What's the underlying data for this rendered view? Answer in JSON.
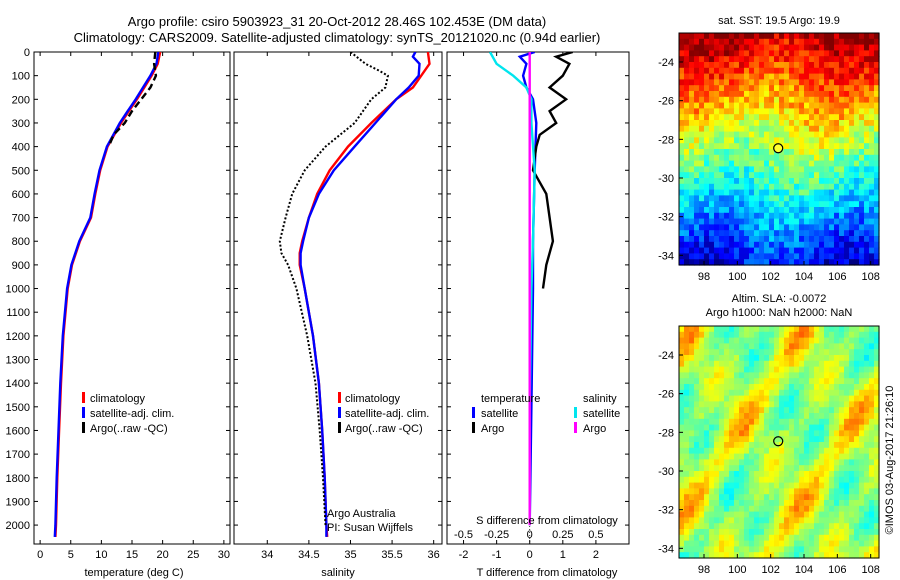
{
  "header": {
    "title_line1": "Argo profile: csiro 5903923_31 20-Oct-2012 28.46S 102.453E (DM data)",
    "title_line2": "Climatology: CARS2009. Satellite-adjusted climatology: synTS_20121020.nc (0.94d earlier)"
  },
  "colors": {
    "climatology": "#ff0000",
    "satellite": "#0000ff",
    "argo": "#000000",
    "satellite_s": "#00e5ee",
    "argo_s": "#ff00ff"
  },
  "chart_data": [
    {
      "id": "temperature",
      "type": "line",
      "xlabel": "temperature (deg C)",
      "ylabel": "",
      "xlim": [
        -1,
        31
      ],
      "ylim": [
        2080,
        0
      ],
      "xticks": [
        0,
        5,
        10,
        15,
        20,
        25,
        30
      ],
      "yticks": [
        0,
        100,
        200,
        300,
        400,
        500,
        600,
        700,
        800,
        900,
        1000,
        1100,
        1200,
        1300,
        1400,
        1500,
        1600,
        1700,
        1800,
        1900,
        2000
      ],
      "legend": [
        "climatology",
        "satellite-adj. clim.",
        "Argo(..raw -QC)"
      ],
      "series": [
        {
          "name": "climatology",
          "style": "solid",
          "color": "#ff0000",
          "depth": [
            0,
            50,
            100,
            150,
            200,
            250,
            300,
            400,
            500,
            600,
            700,
            800,
            900,
            1000,
            1200,
            1400,
            1600,
            1800,
            2000,
            2050
          ],
          "values": [
            19.6,
            19.2,
            18.2,
            17.0,
            15.8,
            14.5,
            13.2,
            11.0,
            9.8,
            9.0,
            8.3,
            6.5,
            5.2,
            4.5,
            3.8,
            3.4,
            3.1,
            2.8,
            2.6,
            2.5
          ]
        },
        {
          "name": "satellite-adj. clim.",
          "style": "solid",
          "color": "#0000ff",
          "depth": [
            0,
            50,
            100,
            150,
            200,
            250,
            300,
            400,
            500,
            600,
            700,
            800,
            900,
            1000,
            1200,
            1400,
            1600,
            1800,
            2000,
            2050
          ],
          "values": [
            19.3,
            19.0,
            18.0,
            16.8,
            15.6,
            14.3,
            13.0,
            10.9,
            9.7,
            8.9,
            8.2,
            6.4,
            5.1,
            4.4,
            3.7,
            3.3,
            3.0,
            2.7,
            2.5,
            2.4
          ]
        },
        {
          "name": "Argo(..raw -QC)",
          "style": "dashed",
          "color": "#000000",
          "depth": [
            0,
            50,
            100,
            150,
            200,
            250,
            300,
            350,
            400
          ],
          "values": [
            18.8,
            18.6,
            18.9,
            18.0,
            16.5,
            15.0,
            13.8,
            12.0,
            11.2
          ]
        }
      ]
    },
    {
      "id": "salinity",
      "type": "line",
      "xlabel": "salinity",
      "xlim": [
        33.6,
        36.1
      ],
      "ylim": [
        2080,
        0
      ],
      "xticks": [
        34,
        34.5,
        35,
        35.5,
        36
      ],
      "legend": [
        "climatology",
        "satellite-adj. clim.",
        "Argo(..raw -QC)"
      ],
      "annotation": [
        "Argo Australia",
        "PI: Susan Wijffels"
      ],
      "series": [
        {
          "name": "climatology",
          "style": "solid",
          "color": "#ff0000",
          "depth": [
            0,
            50,
            100,
            150,
            200,
            300,
            400,
            500,
            600,
            700,
            800,
            850,
            900,
            1000,
            1200,
            1400,
            1600,
            1800,
            2000,
            2050
          ],
          "values": [
            35.93,
            35.95,
            35.85,
            35.75,
            35.55,
            35.25,
            34.97,
            34.75,
            34.6,
            34.5,
            34.42,
            34.39,
            34.39,
            34.45,
            34.55,
            34.62,
            34.66,
            34.69,
            34.71,
            34.72
          ]
        },
        {
          "name": "satellite-adj. clim.",
          "style": "solid",
          "color": "#0000ff",
          "depth": [
            0,
            20,
            50,
            100,
            150,
            200,
            300,
            400,
            500,
            600,
            700,
            800,
            850,
            900,
            1000,
            1200,
            1400,
            1600,
            1800,
            2000,
            2050
          ],
          "values": [
            35.78,
            35.75,
            35.83,
            35.82,
            35.7,
            35.55,
            35.3,
            35.05,
            34.8,
            34.62,
            34.5,
            34.43,
            34.4,
            34.4,
            34.45,
            34.55,
            34.62,
            34.66,
            34.69,
            34.71,
            34.71
          ]
        },
        {
          "name": "Argo(..raw -QC)",
          "style": "dotted",
          "color": "#000000",
          "depth": [
            0,
            50,
            80,
            100,
            150,
            200,
            250,
            300,
            400,
            500,
            600,
            700,
            800,
            850,
            900,
            1000,
            1200,
            1400,
            1600,
            1800,
            2000
          ],
          "values": [
            35.0,
            35.18,
            35.35,
            35.45,
            35.42,
            35.25,
            35.15,
            35.05,
            34.7,
            34.45,
            34.3,
            34.22,
            34.15,
            34.17,
            34.25,
            34.35,
            34.48,
            34.58,
            34.63,
            34.67,
            34.7
          ]
        }
      ]
    },
    {
      "id": "difference",
      "type": "line",
      "xlabel": "T difference from climatology",
      "xlabel_top": "S difference from climatology",
      "xlim": [
        -2.5,
        3
      ],
      "ylim": [
        2080,
        0
      ],
      "xticks": [
        -2,
        -1,
        0,
        1,
        2
      ],
      "xticks_s": [
        "-0.5",
        "-0.25",
        "0",
        "0.25",
        "0.5"
      ],
      "xticks_s_pos": [
        -2,
        -1,
        0,
        1,
        2
      ],
      "legend_headers": [
        "temperature",
        "salinity"
      ],
      "legend": [
        "satellite",
        "Argo",
        "satellite",
        "Argo"
      ],
      "series": [
        {
          "name": "satellite",
          "quantity": "temperature",
          "color": "#0000ff",
          "depth": [
            0,
            20,
            50,
            100,
            150,
            200,
            300,
            500,
            800,
            1000,
            1500,
            2000
          ],
          "values": [
            0.15,
            -0.3,
            -0.1,
            -0.2,
            -0.1,
            0.1,
            0.2,
            0.15,
            0.1,
            0.1,
            0.05,
            0.0
          ]
        },
        {
          "name": "Argo",
          "quantity": "temperature",
          "color": "#000000",
          "depth": [
            0,
            20,
            50,
            100,
            150,
            200,
            250,
            300,
            350,
            400,
            500,
            600,
            700,
            800,
            900,
            1000
          ],
          "values": [
            1.3,
            0.8,
            1.2,
            1.0,
            0.6,
            1.1,
            0.6,
            0.8,
            0.3,
            0.2,
            0.1,
            0.5,
            0.6,
            0.7,
            0.5,
            0.4
          ]
        },
        {
          "name": "satellite",
          "quantity": "salinity",
          "color": "#00e5ee",
          "depth": [
            0,
            50,
            100,
            150,
            200,
            300,
            500,
            800,
            1000,
            1500,
            2000
          ],
          "values": [
            -1.2,
            -1.0,
            -0.5,
            -0.1,
            0.05,
            0.05,
            0.15,
            0.1,
            0.05,
            0.0,
            0.0
          ]
        },
        {
          "name": "Argo",
          "quantity": "salinity",
          "color": "#ff00ff",
          "depth": [
            0,
            2000
          ],
          "values": [
            0,
            0
          ]
        }
      ]
    },
    {
      "id": "sst_map",
      "type": "heatmap",
      "title": "sat. SST: 19.5 Argo: 19.9",
      "xlim": [
        96.5,
        108.5
      ],
      "ylim": [
        -34.5,
        -22.5
      ],
      "xticks": [
        98,
        100,
        102,
        104,
        106,
        108
      ],
      "yticks": [
        -24,
        -26,
        -28,
        -30,
        -32,
        -34
      ],
      "marker": {
        "lon": 102.453,
        "lat": -28.46
      }
    },
    {
      "id": "sla_map",
      "type": "heatmap",
      "title_line1": "Altim. SLA: -0.0072",
      "title_line2": "Argo h1000: NaN h2000: NaN",
      "xlim": [
        96.5,
        108.5
      ],
      "ylim": [
        -34.5,
        -22.5
      ],
      "xticks": [
        98,
        100,
        102,
        104,
        106,
        108
      ],
      "yticks": [
        -24,
        -26,
        -28,
        -30,
        -32,
        -34
      ],
      "marker": {
        "lon": 102.453,
        "lat": -28.46
      }
    }
  ],
  "credit": "©IMOS 03-Aug-2017 21:26:10"
}
